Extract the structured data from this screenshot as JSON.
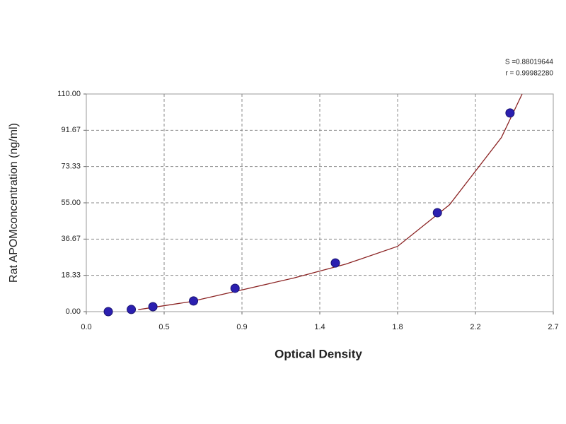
{
  "chart_data": {
    "type": "scatter",
    "x_label": "Optical Density",
    "y_label": "Rat APOMconcentration (ng/ml)",
    "annotations": [
      "S =0.88019644",
      "r = 0.99982280"
    ],
    "series": [
      {
        "color": "#2b1fb0",
        "x": [
          0.127,
          0.26,
          0.385,
          0.62,
          0.86,
          1.44,
          2.03,
          2.45
        ],
        "values": [
          0,
          1.1,
          2.5,
          5.4,
          11.8,
          24.6,
          50,
          100.4
        ]
      },
      {
        "color": "#8b2323",
        "line": true,
        "x": [
          0.3,
          0.6,
          0.9,
          1.2,
          1.5,
          1.8,
          2.1,
          2.4,
          2.52
        ],
        "values": [
          1,
          5,
          11,
          17,
          24,
          33,
          54,
          88,
          110
        ]
      }
    ],
    "xlim": [
      0,
      2.7
    ],
    "xticks": [
      {
        "value": 0,
        "label": "0.0"
      },
      {
        "value": 0.45,
        "label": "0.5"
      },
      0.9,
      {
        "value": 1.35,
        "label": "1.4"
      },
      1.8,
      {
        "value": 2.25,
        "label": "2.2"
      },
      2.7
    ],
    "ylim": [
      0,
      110
    ],
    "yticks": [
      {
        "value": 0,
        "label": "0.00"
      },
      18.33,
      36.67,
      {
        "value": 55,
        "label": "55.00"
      },
      73.33,
      91.67,
      {
        "value": 110,
        "label": "110.00"
      }
    ],
    "grid": true
  }
}
